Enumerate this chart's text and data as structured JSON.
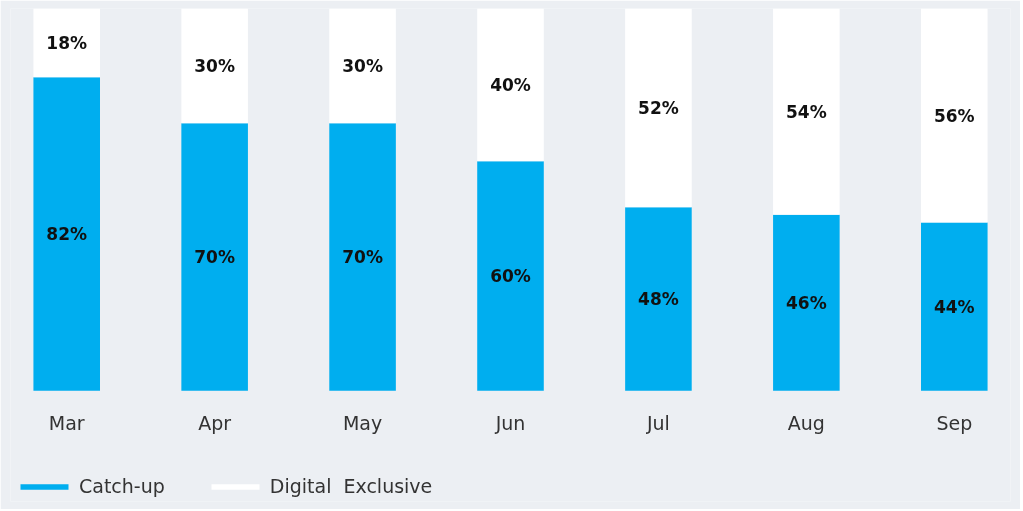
{
  "chart_data": {
    "type": "bar",
    "stacked": true,
    "categories": [
      "Mar",
      "Apr",
      "May",
      "Jun",
      "Jul",
      "Aug",
      "Sep"
    ],
    "series": [
      {
        "name": "Catch-up",
        "color": "#00aeef",
        "values": [
          82,
          70,
          70,
          60,
          48,
          46,
          44
        ],
        "value_labels": [
          "82%",
          "70%",
          "70%",
          "60%",
          "48%",
          "46%",
          "44%"
        ]
      },
      {
        "name": "Digital  Exclusive",
        "color": "#ffffff",
        "values": [
          18,
          30,
          30,
          40,
          52,
          54,
          56
        ],
        "value_labels": [
          "18%",
          "30%",
          "30%",
          "40%",
          "52%",
          "54%",
          "56%"
        ]
      }
    ],
    "legend": "bottom left",
    "tick_labels": "x"
  }
}
